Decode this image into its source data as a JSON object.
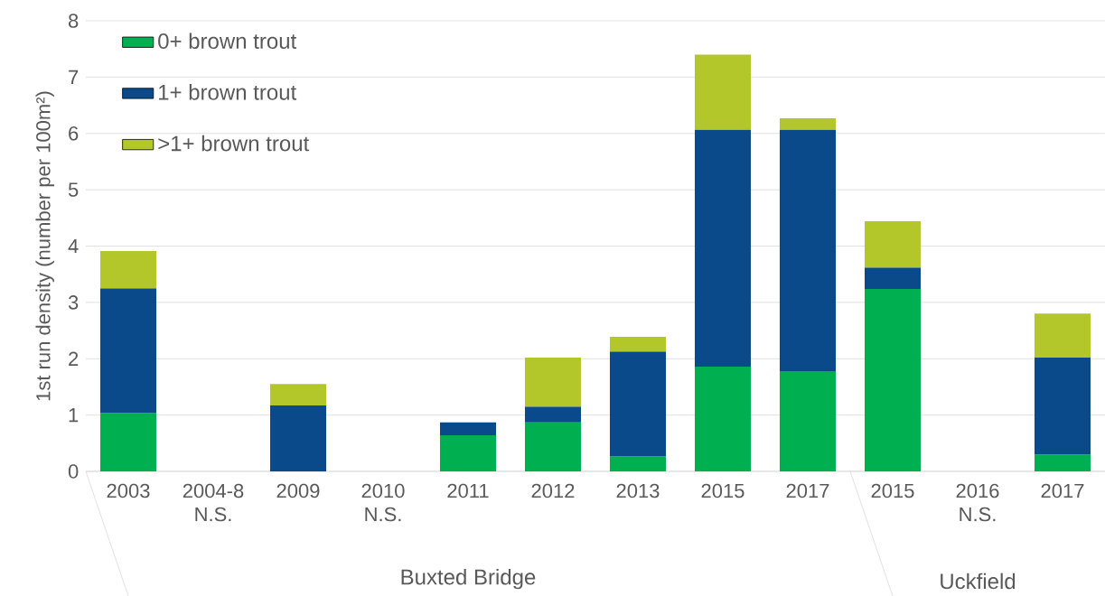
{
  "chart_data": {
    "type": "bar",
    "stacked": true,
    "ylabel": "1st run density (number per 100m²)",
    "categories": [
      "2003",
      "2004-8 N.S.",
      "2009",
      "2010 N.S.",
      "2011",
      "2012",
      "2013",
      "2015",
      "2017",
      "2015",
      "2016 N.S.",
      "2017"
    ],
    "series": [
      {
        "name": "0+ brown trout",
        "color": "#00b050",
        "values": [
          1.04,
          null,
          null,
          null,
          0.64,
          0.87,
          0.27,
          1.86,
          1.78,
          3.24,
          null,
          0.3
        ]
      },
      {
        "name": "1+ brown trout",
        "color": "#0b4a8a",
        "values": [
          2.21,
          null,
          1.17,
          null,
          0.23,
          0.28,
          1.86,
          4.21,
          4.29,
          0.38,
          null,
          1.72
        ]
      },
      {
        "name": ">1+ brown trout",
        "color": "#b3c62a",
        "values": [
          0.66,
          null,
          0.38,
          null,
          null,
          0.87,
          0.26,
          1.33,
          0.2,
          0.82,
          null,
          0.78
        ]
      }
    ],
    "ylim": [
      0,
      8
    ],
    "yticks": [
      0,
      1,
      2,
      3,
      4,
      5,
      6,
      7,
      8
    ],
    "grid": "y",
    "legend": "top left",
    "annotations": [
      "Buxted Bridge",
      "Uckfield"
    ]
  }
}
